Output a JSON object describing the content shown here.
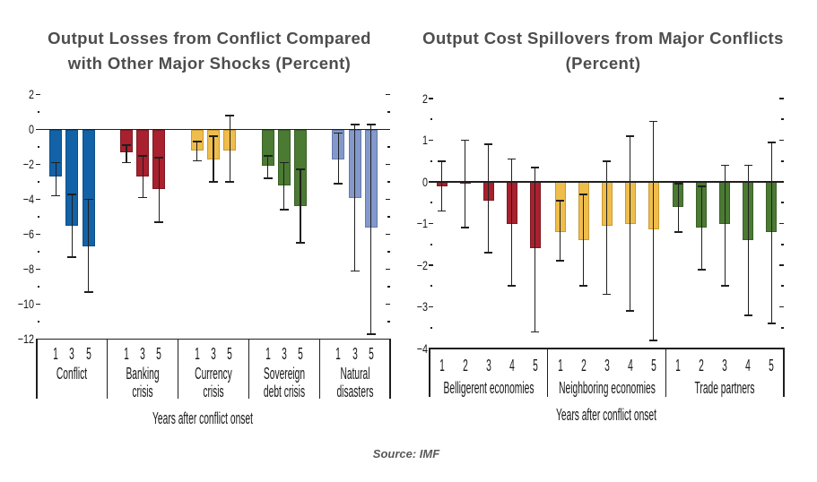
{
  "page": {
    "background": "#ffffff",
    "source_note": "Source: IMF",
    "title_color": "#4d4d4d",
    "source_color": "#595959",
    "axis_text_color": "#1a1a1a",
    "line_color": "#1f1f1f"
  },
  "chart_data": [
    {
      "type": "bar",
      "title": "Output Losses from Conflict Compared with Other Major Shocks (Percent)",
      "title_lines": [
        "Output Losses from Conflict Compared",
        "with Other Major Shocks (Percent)"
      ],
      "xlabel": "Years after conflict onset",
      "ylabel": "",
      "ylim": [
        -12,
        2
      ],
      "y_major_step": 2,
      "y_minor_step": 1,
      "grid": false,
      "error_bars": true,
      "years": [
        "1",
        "3",
        "5"
      ],
      "groups": [
        {
          "label_lines": [
            "Conflict"
          ],
          "color": "#1362a7",
          "border_color": "#0d4e86",
          "values": [
            -2.7,
            -5.5,
            -6.7
          ],
          "ci": [
            [
              -1.9,
              -3.8
            ],
            [
              -3.7,
              -7.3
            ],
            [
              -4.0,
              -9.3
            ]
          ]
        },
        {
          "label_lines": [
            "Banking",
            "crisis"
          ],
          "color": "#a9202e",
          "border_color": "#7e1822",
          "values": [
            -1.3,
            -2.7,
            -3.4
          ],
          "ci": [
            [
              -0.9,
              -1.9
            ],
            [
              -1.5,
              -3.9
            ],
            [
              -1.6,
              -5.3
            ]
          ]
        },
        {
          "label_lines": [
            "Currency",
            "crisis"
          ],
          "color": "#efbd4b",
          "border_color": "#c99a34",
          "values": [
            -1.2,
            -1.7,
            -1.2
          ],
          "ci": [
            [
              -0.7,
              -1.8
            ],
            [
              -0.4,
              -3.0
            ],
            [
              0.8,
              -3.0
            ]
          ]
        },
        {
          "label_lines": [
            "Sovereign",
            "debt crisis"
          ],
          "color": "#4b7a33",
          "border_color": "#3a5f27",
          "values": [
            -2.1,
            -3.2,
            -4.4
          ],
          "ci": [
            [
              -1.5,
              -2.8
            ],
            [
              -1.9,
              -4.6
            ],
            [
              -2.3,
              -6.5
            ]
          ]
        },
        {
          "label_lines": [
            "Natural",
            "disasters"
          ],
          "color": "#8398cb",
          "border_color": "#6579ab",
          "values": [
            -1.7,
            -3.9,
            -5.6
          ],
          "ci": [
            [
              -0.2,
              -3.1
            ],
            [
              0.3,
              -8.1
            ],
            [
              0.3,
              -11.7
            ]
          ]
        }
      ]
    },
    {
      "type": "bar",
      "title": "Output Cost Spillovers from Major Conflicts (Percent)",
      "title_lines": [
        "Output Cost Spillovers from Major Conflicts",
        "(Percent)"
      ],
      "xlabel": "Years after conflict onset",
      "ylabel": "",
      "ylim": [
        -4,
        2
      ],
      "y_major_step": 1,
      "y_minor_step": 0.5,
      "grid": false,
      "error_bars": true,
      "years": [
        "1",
        "2",
        "3",
        "4",
        "5"
      ],
      "groups": [
        {
          "label_lines": [
            "Belligerent economies"
          ],
          "color": "#a9202e",
          "border_color": "#7e1822",
          "values": [
            -0.1,
            -0.05,
            -0.45,
            -1.0,
            -1.6
          ],
          "ci": [
            [
              0.5,
              -0.7
            ],
            [
              1.0,
              -1.1
            ],
            [
              0.9,
              -1.7
            ],
            [
              0.55,
              -2.5
            ],
            [
              0.35,
              -3.6
            ]
          ]
        },
        {
          "label_lines": [
            "Neighboring economies"
          ],
          "color": "#efbd4b",
          "border_color": "#c99a34",
          "values": [
            -1.2,
            -1.4,
            -1.05,
            -1.0,
            -1.15
          ],
          "ci": [
            [
              -0.45,
              -1.9
            ],
            [
              -0.3,
              -2.5
            ],
            [
              0.5,
              -2.7
            ],
            [
              1.1,
              -3.1
            ],
            [
              1.45,
              -3.8
            ]
          ]
        },
        {
          "label_lines": [
            "Trade partners"
          ],
          "color": "#4b7a33",
          "border_color": "#3a5f27",
          "values": [
            -0.6,
            -1.1,
            -1.0,
            -1.4,
            -1.2
          ],
          "ci": [
            [
              -0.05,
              -1.2
            ],
            [
              -0.1,
              -2.1
            ],
            [
              0.4,
              -2.5
            ],
            [
              0.4,
              -3.2
            ],
            [
              0.95,
              -3.4
            ]
          ]
        }
      ]
    }
  ]
}
